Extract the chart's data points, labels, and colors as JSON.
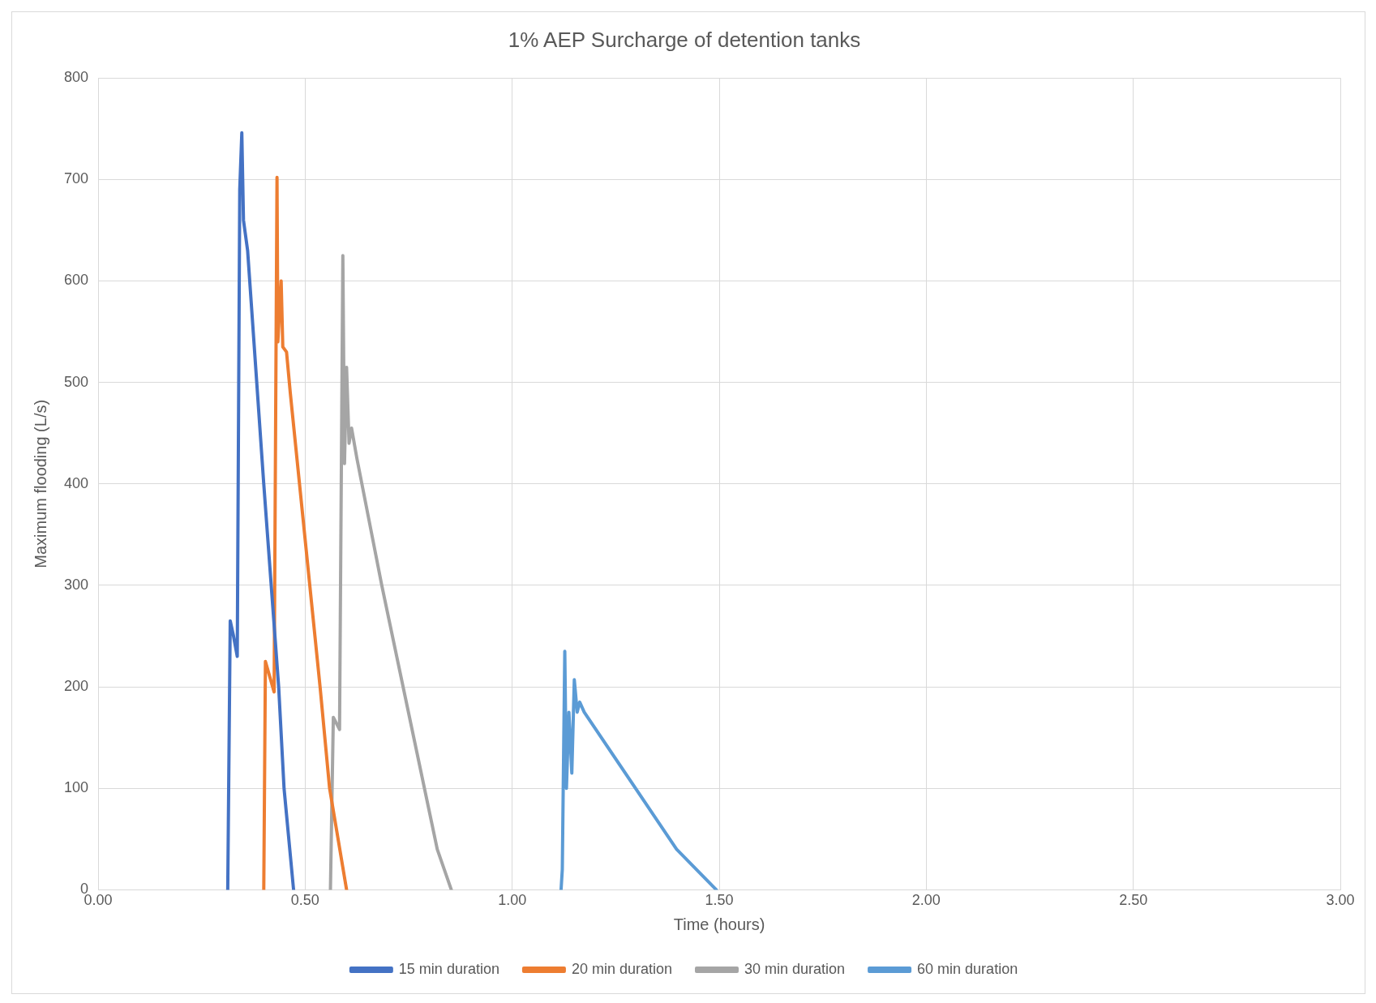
{
  "chart_data": {
    "type": "line",
    "title": "1% AEP Surcharge of detention tanks",
    "xlabel": "Time (hours)",
    "ylabel": "Maximum flooding (L/s)",
    "xlim": [
      0,
      3
    ],
    "xticks": [
      {
        "value": 0,
        "label": "0.00"
      },
      {
        "value": 0.5,
        "label": "0.50"
      },
      {
        "value": 1,
        "label": "1.00"
      },
      {
        "value": 1.5,
        "label": "1.50"
      },
      {
        "value": 2,
        "label": "2.00"
      },
      {
        "value": 2.5,
        "label": "2.50"
      },
      {
        "value": 3,
        "label": "3.00"
      }
    ],
    "ylim": [
      0,
      800
    ],
    "yticks": [
      0,
      100,
      200,
      300,
      400,
      500,
      600,
      700,
      800
    ],
    "grid": true,
    "legend": "bottom",
    "marker": "none",
    "line_style": "solid",
    "series": [
      {
        "name": "15 min duration",
        "color": "#4472c4",
        "x": [
          0.313,
          0.319,
          0.327,
          0.336,
          0.342,
          0.347,
          0.351,
          0.361,
          0.4,
          0.436,
          0.449,
          0.472
        ],
        "values": [
          0,
          265,
          250,
          230,
          690,
          746,
          660,
          630,
          400,
          200,
          100,
          0
        ]
      },
      {
        "name": "20 min duration",
        "color": "#ed7d31",
        "x": [
          0.4,
          0.404,
          0.425,
          0.432,
          0.434,
          0.442,
          0.446,
          0.455,
          0.464,
          0.536,
          0.559,
          0.6
        ],
        "values": [
          0,
          225,
          195,
          702,
          540,
          600,
          535,
          530,
          490,
          200,
          100,
          0
        ]
      },
      {
        "name": "30 min duration",
        "color": "#a5a5a5",
        "x": [
          0.561,
          0.568,
          0.583,
          0.591,
          0.595,
          0.6,
          0.606,
          0.612,
          0.625,
          0.685,
          0.819,
          0.836,
          0.853
        ],
        "values": [
          0,
          170,
          158,
          625,
          420,
          515,
          440,
          455,
          425,
          300,
          40,
          20,
          0
        ]
      },
      {
        "name": "60 min duration",
        "color": "#5b9bd5",
        "x": [
          1.118,
          1.121,
          1.127,
          1.131,
          1.137,
          1.144,
          1.15,
          1.157,
          1.163,
          1.174,
          1.397,
          1.493
        ],
        "values": [
          0,
          20,
          235,
          100,
          175,
          115,
          207,
          175,
          185,
          175,
          40,
          0
        ]
      }
    ]
  }
}
